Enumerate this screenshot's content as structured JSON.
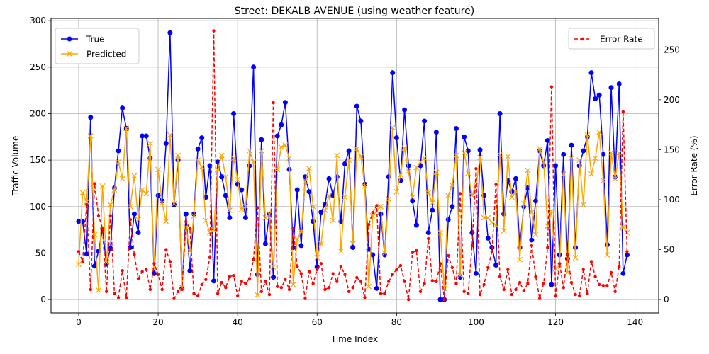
{
  "chart_data": {
    "type": "line",
    "title": "Street: DEKALB AVENUE (using weather feature)",
    "xlabel": "Time Index",
    "ylabel": "Traffic Volume",
    "y2label": "Error Rate (%)",
    "xlim": [
      -6.95,
      145.95
    ],
    "ylim": [
      -14.4,
      302.4
    ],
    "y2lim": [
      -13.4,
      281.4
    ],
    "xticks": [
      0,
      20,
      40,
      60,
      80,
      100,
      120,
      140
    ],
    "yticks": [
      0,
      50,
      100,
      150,
      200,
      250,
      300
    ],
    "y2ticks": [
      0,
      50,
      100,
      150,
      200,
      250
    ],
    "grid": true,
    "legend_left_placement": "upper left",
    "legend_right_placement": "upper right",
    "colors": {
      "true": "#0000ff",
      "predicted": "#ffa500",
      "error": "#ff0000"
    },
    "series": [
      {
        "name": "True",
        "axis": "left",
        "marker": "circle",
        "line": "solid",
        "values": [
          84,
          84,
          49,
          196,
          36,
          52,
          76,
          38,
          55,
          120,
          160,
          206,
          184,
          56,
          92,
          72,
          176,
          176,
          152,
          28,
          112,
          106,
          168,
          287,
          102,
          150,
          12,
          92,
          31,
          92,
          162,
          174,
          110,
          144,
          20,
          148,
          132,
          112,
          88,
          200,
          124,
          118,
          88,
          144,
          250,
          27,
          172,
          60,
          92,
          24,
          176,
          188,
          212,
          140,
          56,
          118,
          58,
          132,
          116,
          84,
          35,
          94,
          102,
          130,
          112,
          132,
          84,
          146,
          160,
          56,
          208,
          192,
          124,
          54,
          48,
          12,
          92,
          48,
          132,
          244,
          174,
          128,
          204,
          144,
          106,
          80,
          144,
          192,
          72,
          96,
          180,
          0,
          0,
          86,
          100,
          184,
          24,
          175,
          160,
          72,
          28,
          161,
          112,
          66,
          56,
          37,
          200,
          92,
          128,
          116,
          130,
          56,
          100,
          120,
          64,
          106,
          160,
          144,
          171,
          16,
          144,
          48,
          156,
          44,
          166,
          56,
          144,
          160,
          175,
          244,
          216,
          220,
          156,
          59,
          228,
          132,
          232,
          28,
          48
        ]
      },
      {
        "name": "Predicted",
        "axis": "left",
        "marker": "x",
        "line": "solid",
        "values": [
          38,
          115,
          105,
          176,
          70,
          10,
          122,
          40,
          102,
          118,
          148,
          130,
          184,
          100,
          133,
          86,
          118,
          114,
          168,
          32,
          140,
          104,
          84,
          177,
          103,
          155,
          13,
          78,
          52,
          90,
          150,
          143,
          85,
          72,
          75,
          140,
          155,
          132,
          96,
          152,
          129,
          97,
          100,
          160,
          148,
          5,
          160,
          88,
          92,
          35,
          140,
          164,
          166,
          152,
          16,
          65,
          73,
          127,
          141,
          100,
          45,
          60,
          96,
          112,
          85,
          155,
          52,
          110,
          150,
          60,
          162,
          154,
          122,
          14,
          90,
          95,
          100,
          50,
          108,
          185,
          116,
          134,
          163,
          138,
          110,
          142,
          148,
          152,
          115,
          104,
          137,
          72,
          12,
          112,
          123,
          155,
          26,
          158,
          136,
          112,
          123,
          153,
          88,
          88,
          83,
          80,
          156,
          74,
          154,
          110,
          116,
          43,
          103,
          139,
          94,
          70,
          162,
          148,
          79,
          95,
          33,
          37,
          135,
          29,
          152,
          45,
          150,
          102,
          177,
          135,
          152,
          180,
          128,
          48,
          158,
          130,
          158,
          78,
          72
        ]
      },
      {
        "name": "Error Rate",
        "axis": "right",
        "marker": "dot",
        "line": "dashed",
        "values": [
          48,
          38,
          95,
          10,
          116,
          84,
          71,
          8,
          84,
          6,
          2,
          29,
          2,
          80,
          45,
          21,
          28,
          30,
          10,
          36,
          25,
          10,
          50,
          38,
          1,
          8,
          10,
          78,
          71,
          6,
          4,
          15,
          20,
          42,
          269,
          6,
          17,
          12,
          23,
          24,
          4,
          18,
          16,
          21,
          40,
          92,
          8,
          18,
          5,
          197,
          13,
          12,
          20,
          10,
          71,
          33,
          26,
          1,
          28,
          16,
          30,
          36,
          10,
          12,
          26,
          18,
          33,
          25,
          8,
          12,
          22,
          18,
          2,
          75,
          87,
          94,
          6,
          6,
          18,
          25,
          30,
          34,
          18,
          0,
          47,
          49,
          8,
          16,
          61,
          19,
          18,
          36,
          0,
          44,
          32,
          16,
          106,
          8,
          6,
          54,
          131,
          5,
          15,
          32,
          48,
          115,
          23,
          10,
          30,
          5,
          10,
          17,
          9,
          16,
          54,
          23,
          1,
          16,
          52,
          213,
          4,
          36,
          12,
          45,
          17,
          5,
          4,
          30,
          6,
          38,
          23,
          15,
          14,
          14,
          27,
          8,
          33,
          188,
          48
        ]
      }
    ]
  }
}
